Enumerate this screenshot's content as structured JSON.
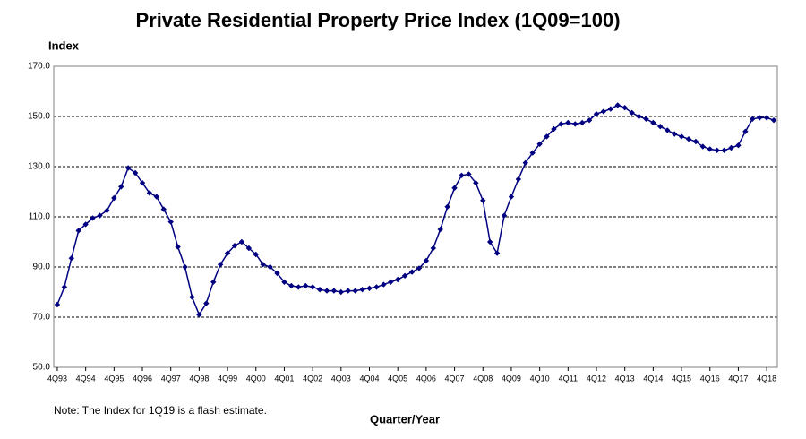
{
  "chart_data": {
    "type": "line",
    "title": "Private Residential Property Price Index (1Q09=100)",
    "y_axis_label": "Index",
    "x_axis_label": "Quarter/Year",
    "note": "Note: The Index for 1Q19 is a flash estimate.",
    "categories": [
      "4Q93",
      null,
      null,
      null,
      "4Q94",
      null,
      null,
      null,
      "4Q95",
      null,
      null,
      null,
      "4Q96",
      null,
      null,
      null,
      "4Q97",
      null,
      null,
      null,
      "4Q98",
      null,
      null,
      null,
      "4Q99",
      null,
      null,
      null,
      "4Q00",
      null,
      null,
      null,
      "4Q01",
      null,
      null,
      null,
      "4Q02",
      null,
      null,
      null,
      "4Q03",
      null,
      null,
      null,
      "4Q04",
      null,
      null,
      null,
      "4Q05",
      null,
      null,
      null,
      "4Q06",
      null,
      null,
      null,
      "4Q07",
      null,
      null,
      null,
      "4Q08",
      null,
      null,
      null,
      "4Q09",
      null,
      null,
      null,
      "4Q10",
      null,
      null,
      null,
      "4Q11",
      null,
      null,
      null,
      "4Q12",
      null,
      null,
      null,
      "4Q13",
      null,
      null,
      null,
      "4Q14",
      null,
      null,
      null,
      "4Q15",
      null,
      null,
      null,
      "4Q16",
      null,
      null,
      null,
      "4Q17",
      null,
      null,
      null,
      "4Q18",
      null
    ],
    "values": [
      75,
      82,
      93.5,
      104.5,
      107,
      109.5,
      110.5,
      112.5,
      117.5,
      122,
      129.5,
      127.5,
      123.5,
      119.5,
      118,
      113,
      108,
      98,
      90,
      78,
      71,
      75.5,
      84,
      91,
      95.5,
      98.5,
      100,
      97.5,
      95,
      91,
      90,
      87.5,
      84,
      82.5,
      82,
      82.5,
      82,
      81,
      80.5,
      80.5,
      80,
      80.5,
      80.5,
      81,
      81.5,
      82,
      83,
      84,
      85,
      86.5,
      88,
      89.5,
      92.5,
      97.5,
      105,
      114,
      121.5,
      126.5,
      127,
      123.5,
      116.5,
      100,
      95.5,
      110.5,
      118,
      125,
      131.5,
      135.5,
      139,
      142,
      145,
      147,
      147.5,
      147,
      147.5,
      148.5,
      151,
      152,
      153,
      154.5,
      153.5,
      151.5,
      150,
      149,
      147.5,
      146,
      144.5,
      143,
      142,
      141,
      140,
      138,
      137,
      136.5,
      136.5,
      137.5,
      138.5,
      144,
      149,
      149.5,
      149.5,
      148.5
    ],
    "color": "#000080",
    "ylim": [
      50,
      170
    ],
    "yticks": [
      {
        "value": 50,
        "label": "50.0"
      },
      {
        "value": 70,
        "label": "70.0"
      },
      {
        "value": 90,
        "label": "90.0"
      },
      {
        "value": 110,
        "label": "110.0"
      },
      {
        "value": 130,
        "label": "130.0"
      },
      {
        "value": 150,
        "label": "150.0"
      },
      {
        "value": 170,
        "label": "170.0"
      }
    ],
    "grid": true
  }
}
